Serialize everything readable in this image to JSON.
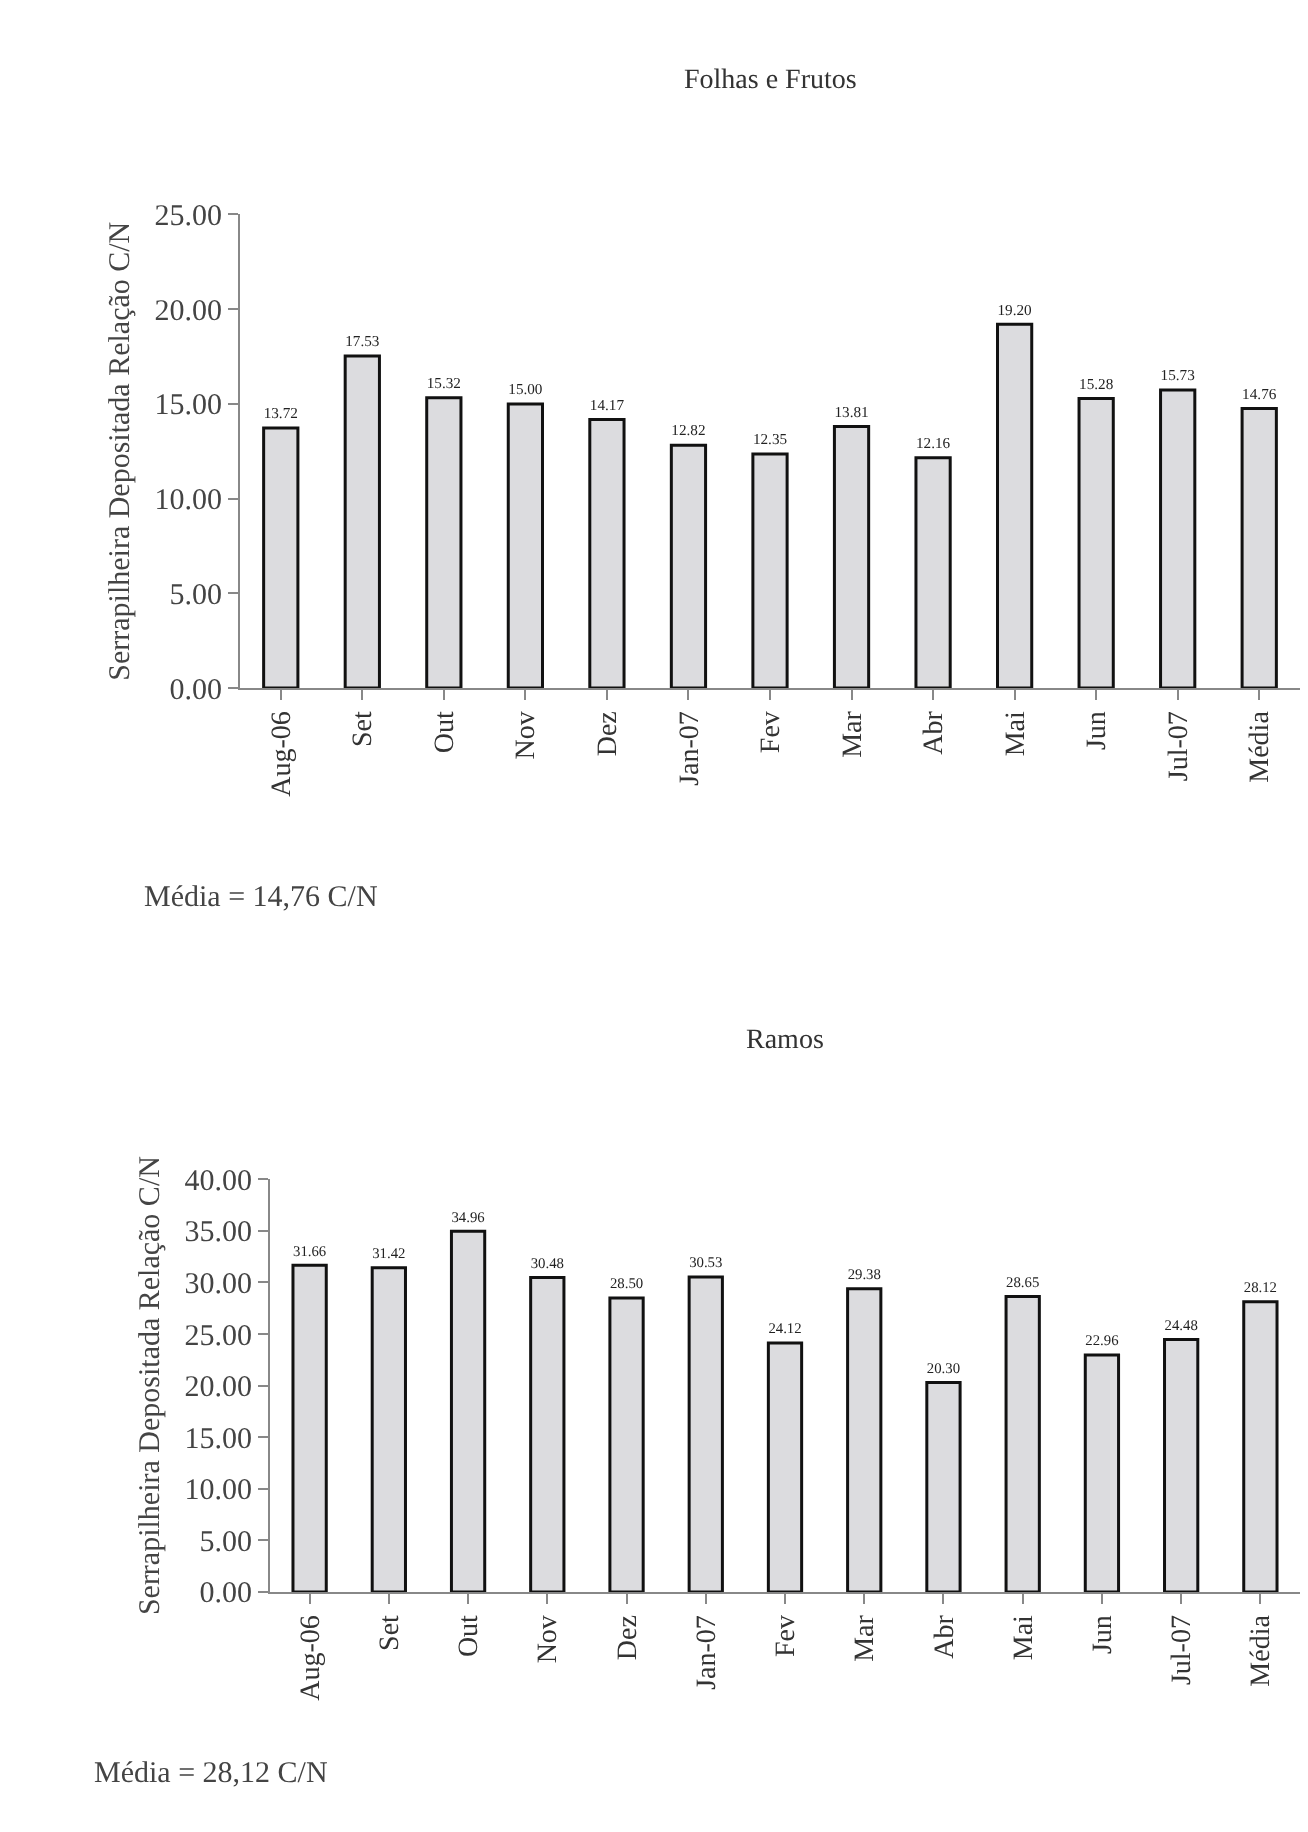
{
  "chart_data": [
    {
      "type": "bar",
      "title": "Folhas e Frutos",
      "ylabel": "Serrapilheira Depositada Relação C/N",
      "categories": [
        "Aug-06",
        "Set",
        "Out",
        "Nov",
        "Dez",
        "Jan-07",
        "Fev",
        "Mar",
        "Abr",
        "Mai",
        "Jun",
        "Jul-07",
        "Média"
      ],
      "values": [
        13.72,
        17.53,
        15.32,
        15.0,
        14.17,
        12.82,
        12.35,
        13.81,
        12.16,
        19.2,
        15.28,
        15.73,
        14.76
      ],
      "value_labels": [
        "13.72",
        "17.53",
        "15.32",
        "15.00",
        "14.17",
        "12.82",
        "12.35",
        "13.81",
        "12.16",
        "19.20",
        "15.28",
        "15.73",
        "14.76"
      ],
      "color": "#dcdcdf",
      "ylim": [
        0,
        25
      ],
      "yticks": [
        {
          "value": 0,
          "label": "0.00"
        },
        {
          "value": 5,
          "label": "5.00"
        },
        {
          "value": 10,
          "label": "10.00"
        },
        {
          "value": 15,
          "label": "15.00"
        },
        {
          "value": 20,
          "label": "20.00"
        },
        {
          "value": 25,
          "label": "25.00"
        }
      ],
      "annotations": [
        "Média = 14,76 C/N"
      ]
    },
    {
      "type": "bar",
      "title": "Ramos",
      "ylabel": "Serrapilheira Depositada Relação C/N",
      "categories": [
        "Aug-06",
        "Set",
        "Out",
        "Nov",
        "Dez",
        "Jan-07",
        "Fev",
        "Mar",
        "Abr",
        "Mai",
        "Jun",
        "Jul-07",
        "Média"
      ],
      "values": [
        31.66,
        31.42,
        34.96,
        30.48,
        28.5,
        30.53,
        24.12,
        29.38,
        20.3,
        28.65,
        22.96,
        24.48,
        28.12
      ],
      "value_labels": [
        "31.66",
        "31.42",
        "34.96",
        "30.48",
        "28.50",
        "30.53",
        "24.12",
        "29.38",
        "20.30",
        "28.65",
        "22.96",
        "24.48",
        "28.12"
      ],
      "color": "#dcdcdf",
      "ylim": [
        0,
        40
      ],
      "yticks": [
        {
          "value": 0,
          "label": "0.00"
        },
        {
          "value": 5,
          "label": "5.00"
        },
        {
          "value": 10,
          "label": "10.00"
        },
        {
          "value": 15,
          "label": "15.00"
        },
        {
          "value": 20,
          "label": "20.00"
        },
        {
          "value": 25,
          "label": "25.00"
        },
        {
          "value": 30,
          "label": "30.00"
        },
        {
          "value": 35,
          "label": "35.00"
        },
        {
          "value": 40,
          "label": "40.00"
        }
      ],
      "annotations": [
        "Média = 28,12 C/N"
      ]
    }
  ]
}
